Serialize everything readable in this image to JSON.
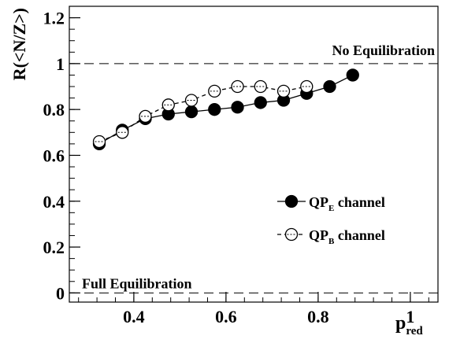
{
  "chart_data": {
    "type": "line",
    "xlabel": "p",
    "xlabel_sub": "red",
    "ylabel": "R(<N/Z>)",
    "xlim": [
      0.26,
      1.06
    ],
    "ylim": [
      -0.04,
      1.25
    ],
    "x_ticks": [
      0.4,
      0.6,
      0.8,
      1.0
    ],
    "x_tick_labels": [
      "0.4",
      "0.6",
      "0.8",
      "1"
    ],
    "y_ticks": [
      0,
      0.2,
      0.4,
      0.6,
      0.8,
      1.0,
      1.2
    ],
    "y_tick_labels": [
      "0",
      "0.2",
      "0.4",
      "0.6",
      "0.8",
      "1",
      "1.2"
    ],
    "reference_lines": [
      {
        "y": 1.0,
        "label": "No Equilibration"
      },
      {
        "y": 0.0,
        "label": "Full Equilibration"
      }
    ],
    "legend_position": "right-middle",
    "series": [
      {
        "name": "QP",
        "name_sub": "E",
        "name_suffix": " channel",
        "marker": "filled-circle",
        "line": "solid",
        "x": [
          0.325,
          0.375,
          0.425,
          0.475,
          0.525,
          0.575,
          0.625,
          0.675,
          0.725,
          0.775,
          0.825,
          0.875
        ],
        "y": [
          0.65,
          0.71,
          0.76,
          0.78,
          0.79,
          0.8,
          0.81,
          0.83,
          0.84,
          0.87,
          0.9,
          0.95
        ]
      },
      {
        "name": "QP",
        "name_sub": "B",
        "name_suffix": " channel",
        "marker": "open-circle",
        "line": "dashed",
        "x": [
          0.325,
          0.375,
          0.425,
          0.475,
          0.525,
          0.575,
          0.625,
          0.675,
          0.725,
          0.775
        ],
        "y": [
          0.66,
          0.7,
          0.77,
          0.82,
          0.84,
          0.88,
          0.9,
          0.9,
          0.88,
          0.9
        ]
      }
    ]
  }
}
